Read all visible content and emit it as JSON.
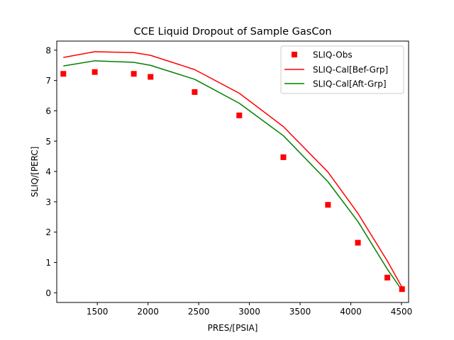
{
  "chart_data": {
    "type": "line",
    "title": "CCE Liquid Dropout of Sample GasCon",
    "xlabel": "PRES/[PSIA]",
    "ylabel": "SLIQ/[PERC]",
    "xlim": [
      1100,
      4570
    ],
    "ylim": [
      -0.32,
      8.3
    ],
    "xticks": [
      1500,
      2000,
      2500,
      3000,
      3500,
      4000,
      4500
    ],
    "yticks": [
      0,
      1,
      2,
      3,
      4,
      5,
      6,
      7,
      8
    ],
    "grid": false,
    "legend_position": "top-right",
    "series": [
      {
        "name": "SLIQ-Obs",
        "style": "marker",
        "color": "#ff0000",
        "x": [
          1165,
          1475,
          1860,
          2025,
          2460,
          2900,
          3335,
          3775,
          4070,
          4360,
          4505
        ],
        "y": [
          7.22,
          7.28,
          7.22,
          7.12,
          6.62,
          5.85,
          4.47,
          2.9,
          1.65,
          0.5,
          0.12
        ]
      },
      {
        "name": "SLIQ-Cal[Bef-Grp]",
        "style": "line",
        "color": "#ff0000",
        "x": [
          1165,
          1475,
          1860,
          2025,
          2460,
          2900,
          3335,
          3775,
          4070,
          4360,
          4505
        ],
        "y": [
          7.76,
          7.95,
          7.92,
          7.83,
          7.36,
          6.58,
          5.48,
          3.98,
          2.62,
          1.05,
          0.18
        ]
      },
      {
        "name": "SLIQ-Cal[Aft-Grp]",
        "style": "line",
        "color": "#008000",
        "x": [
          1165,
          1475,
          1860,
          2025,
          2460,
          2900,
          3335,
          3775,
          4070,
          4360,
          4505
        ],
        "y": [
          7.48,
          7.65,
          7.6,
          7.5,
          7.04,
          6.25,
          5.18,
          3.66,
          2.35,
          0.78,
          0.08
        ]
      }
    ]
  }
}
